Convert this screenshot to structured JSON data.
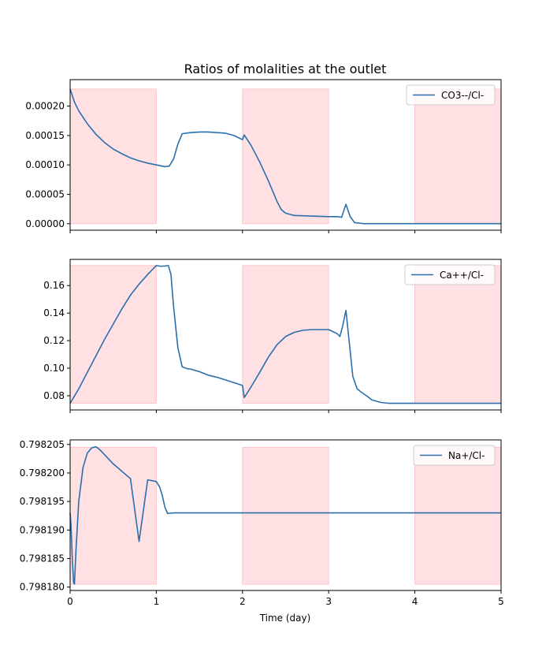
{
  "figure": {
    "title": "Ratios of molalities at the outlet",
    "xlabel": "Time (day)"
  },
  "chart_data": [
    {
      "type": "line",
      "shared_x": true,
      "xlim": [
        0,
        5
      ],
      "ylim": [
        -1.1e-05,
        0.000245
      ],
      "x_ticks": [
        0,
        1,
        2,
        3,
        4,
        5
      ],
      "y_ticks": [
        0,
        5e-05,
        0.0001,
        0.00015,
        0.0002
      ],
      "y_tick_labels": [
        "0.00000",
        "0.00005",
        "0.00010",
        "0.00015",
        "0.00020"
      ],
      "legend_position": "top-right",
      "shaded_intervals": [
        [
          0,
          1
        ],
        [
          2,
          3
        ],
        [
          4,
          5
        ]
      ],
      "shade_top": 0.000229,
      "series": [
        {
          "name": "CO3--/Cl-",
          "color": "#2a6fad",
          "x": [
            0,
            0.05,
            0.1,
            0.2,
            0.3,
            0.4,
            0.5,
            0.6,
            0.7,
            0.8,
            0.9,
            1.0,
            1.1,
            1.15,
            1.2,
            1.25,
            1.3,
            1.4,
            1.5,
            1.6,
            1.7,
            1.8,
            1.9,
            2.0,
            2.02,
            2.1,
            2.2,
            2.3,
            2.4,
            2.45,
            2.5,
            2.6,
            2.8,
            3.0,
            3.1,
            3.15,
            3.2,
            3.25,
            3.3,
            3.4,
            3.5,
            4.0,
            4.5,
            5.0
          ],
          "y": [
            0.000229,
            0.000207,
            0.000192,
            0.00017,
            0.000152,
            0.000138,
            0.000127,
            0.000119,
            0.000112,
            0.000107,
            0.000103,
            0.0001,
            9.7e-05,
            9.8e-05,
            0.00011,
            0.000135,
            0.000153,
            0.000155,
            0.000156,
            0.000156,
            0.000155,
            0.000154,
            0.00015,
            0.000143,
            0.000151,
            0.000133,
            0.000105,
            7.3e-05,
            3.8e-05,
            2.4e-05,
            1.8e-05,
            1.4e-05,
            1.3e-05,
            1.2e-05,
            1.2e-05,
            1.1e-05,
            3.3e-05,
            1.2e-05,
            2e-06,
            2e-07,
            2e-07,
            2e-07,
            2e-07,
            2e-07
          ]
        }
      ]
    },
    {
      "type": "line",
      "shared_x": true,
      "xlim": [
        0,
        5
      ],
      "ylim": [
        0.0697,
        0.179
      ],
      "x_ticks": [
        0,
        1,
        2,
        3,
        4,
        5
      ],
      "y_ticks": [
        0.08,
        0.1,
        0.12,
        0.14,
        0.16
      ],
      "y_tick_labels": [
        "0.08",
        "0.10",
        "0.12",
        "0.14",
        "0.16"
      ],
      "legend_position": "top-right",
      "shaded_intervals": [
        [
          0,
          1
        ],
        [
          2,
          3
        ],
        [
          4,
          5
        ]
      ],
      "shade_top": 0.1745,
      "series": [
        {
          "name": "Ca++/Cl-",
          "color": "#2a6fad",
          "x": [
            0,
            0.1,
            0.2,
            0.3,
            0.4,
            0.5,
            0.6,
            0.7,
            0.8,
            0.9,
            1.0,
            1.05,
            1.1,
            1.14,
            1.17,
            1.2,
            1.25,
            1.3,
            1.35,
            1.4,
            1.5,
            1.6,
            1.7,
            1.8,
            1.9,
            2.0,
            2.02,
            2.1,
            2.2,
            2.3,
            2.4,
            2.5,
            2.6,
            2.7,
            2.8,
            2.9,
            3.0,
            3.1,
            3.13,
            3.16,
            3.2,
            3.24,
            3.28,
            3.33,
            3.38,
            3.45,
            3.5,
            3.6,
            3.7,
            4.0,
            5.0
          ],
          "y": [
            0.0745,
            0.085,
            0.097,
            0.109,
            0.121,
            0.132,
            0.143,
            0.153,
            0.161,
            0.168,
            0.1745,
            0.174,
            0.1742,
            0.1745,
            0.168,
            0.145,
            0.115,
            0.101,
            0.0998,
            0.0993,
            0.0975,
            0.095,
            0.0935,
            0.0915,
            0.0895,
            0.0875,
            0.0787,
            0.0865,
            0.097,
            0.108,
            0.117,
            0.123,
            0.126,
            0.1275,
            0.128,
            0.128,
            0.128,
            0.125,
            0.123,
            0.13,
            0.142,
            0.118,
            0.094,
            0.085,
            0.0825,
            0.0795,
            0.077,
            0.0752,
            0.0745,
            0.0745,
            0.0745
          ]
        }
      ]
    },
    {
      "type": "line",
      "shared_x": true,
      "xlim": [
        0,
        5
      ],
      "ylim": [
        0.7981794,
        0.7982058
      ],
      "x_ticks": [
        0,
        1,
        2,
        3,
        4,
        5
      ],
      "x_tick_labels": [
        "0",
        "1",
        "2",
        "3",
        "4",
        "5"
      ],
      "y_ticks": [
        0.79818,
        0.798185,
        0.79819,
        0.798195,
        0.7982,
        0.798205
      ],
      "y_tick_labels": [
        "0.798180",
        "0.798185",
        "0.798190",
        "0.798195",
        "0.798200",
        "0.798205"
      ],
      "legend_position": "top-right",
      "shaded_intervals": [
        [
          0,
          1
        ],
        [
          2,
          3
        ],
        [
          4,
          5
        ]
      ],
      "shade_top": 0.7982045,
      "shade_bottom": 0.7981805,
      "series": [
        {
          "name": "Na+/Cl-",
          "color": "#2a6fad",
          "x": [
            0,
            0.01,
            0.025,
            0.04,
            0.05,
            0.07,
            0.1,
            0.15,
            0.2,
            0.25,
            0.3,
            0.35,
            0.4,
            0.5,
            0.6,
            0.7,
            0.8,
            0.9,
            1.0,
            1.04,
            1.07,
            1.1,
            1.13,
            1.2,
            2.0,
            3.0,
            4.0,
            5.0
          ],
          "y": [
            0.798193,
            0.798191,
            0.798185,
            0.7981808,
            0.7981805,
            0.798187,
            0.798195,
            0.798201,
            0.7982035,
            0.7982044,
            0.7982046,
            0.798204,
            0.7982032,
            0.7982016,
            0.7982003,
            0.798199,
            0.798188,
            0.7981988,
            0.7981985,
            0.7981975,
            0.798196,
            0.798194,
            0.7981929,
            0.798193,
            0.798193,
            0.798193,
            0.798193,
            0.798193
          ]
        }
      ]
    }
  ],
  "style": {
    "shade_fill": "#ffe0e3",
    "shade_stroke": "#ffc4c9",
    "axes_color": "#000000",
    "legend_border": "#cccccc"
  }
}
